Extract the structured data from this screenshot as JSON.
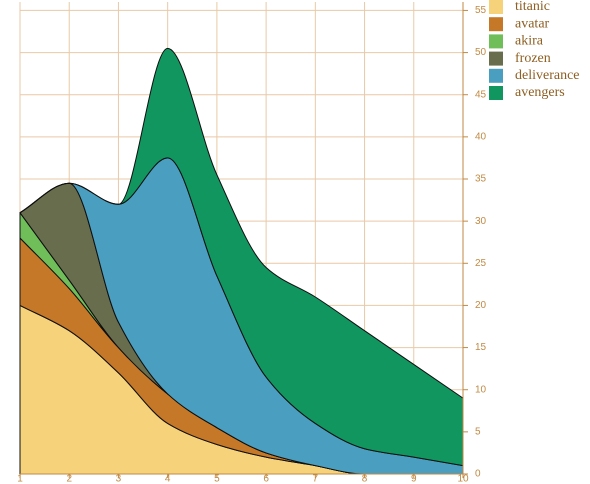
{
  "chart_data": {
    "type": "area",
    "stacked": true,
    "smooth": true,
    "x": [
      1,
      2,
      3,
      4,
      5,
      6,
      7,
      8,
      9,
      10
    ],
    "series": [
      {
        "name": "titanic",
        "color": "#f6d27b",
        "values": [
          20,
          17,
          12,
          6,
          3.5,
          2,
          1,
          0,
          0,
          0
        ]
      },
      {
        "name": "avatar",
        "color": "#c47828",
        "values": [
          8,
          5,
          3,
          3.5,
          2,
          0.5,
          0,
          0,
          0,
          0
        ]
      },
      {
        "name": "akira",
        "color": "#6fbe59",
        "values": [
          3,
          1,
          0,
          0,
          0,
          0,
          0,
          0,
          0,
          0
        ]
      },
      {
        "name": "frozen",
        "color": "#676d4d",
        "values": [
          0,
          11.5,
          3,
          0,
          0,
          0,
          0,
          0,
          0,
          0
        ]
      },
      {
        "name": "deliverance",
        "color": "#4a9ebf",
        "values": [
          0,
          0,
          14,
          28,
          18,
          9,
          5,
          3,
          2,
          1
        ]
      },
      {
        "name": "avengers",
        "color": "#119660",
        "values": [
          0,
          0,
          0,
          13,
          12,
          13,
          15,
          14,
          11,
          8
        ]
      }
    ],
    "xlim": [
      1,
      10
    ],
    "ylim": [
      0,
      56
    ],
    "x_ticks": [
      1,
      2,
      3,
      4,
      5,
      6,
      7,
      8,
      9,
      10
    ],
    "y_ticks": [
      0,
      5,
      10,
      15,
      20,
      25,
      30,
      35,
      40,
      45,
      50,
      55
    ],
    "grid": true,
    "grid_color": "#e9c9a7",
    "axis_color": "#c08a45",
    "tick_color": "#c08a45",
    "legend_text_color": "#8d5f22",
    "stroke_color": "#0f0f0f",
    "legend_position": "top-right",
    "y_axis_position": "right",
    "title": "",
    "xlabel": "",
    "ylabel": ""
  }
}
